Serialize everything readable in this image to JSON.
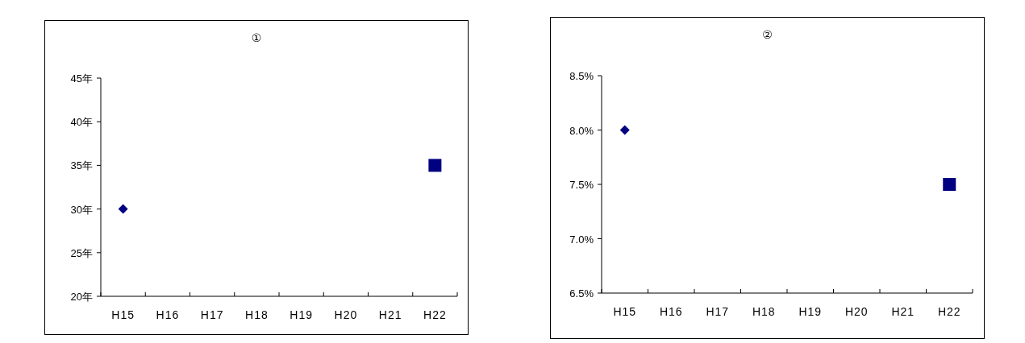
{
  "chart_data": [
    {
      "type": "scatter",
      "title": "①",
      "categories": [
        "H15",
        "H16",
        "H17",
        "H18",
        "H19",
        "H20",
        "H21",
        "H22"
      ],
      "ylim": [
        20,
        45
      ],
      "yticks": [
        {
          "value": 20,
          "label": "20年"
        },
        {
          "value": 25,
          "label": "25年"
        },
        {
          "value": 30,
          "label": "30年"
        },
        {
          "value": 35,
          "label": "35年"
        },
        {
          "value": 40,
          "label": "40年"
        },
        {
          "value": 45,
          "label": "45年"
        }
      ],
      "grid": false,
      "series": [
        {
          "color": "#000080",
          "marker": "diamond",
          "values": [
            30,
            null,
            null,
            null,
            null,
            null,
            null,
            null
          ]
        },
        {
          "color": "#000080",
          "marker": "square",
          "values": [
            null,
            null,
            null,
            null,
            null,
            null,
            null,
            35
          ]
        }
      ]
    },
    {
      "type": "scatter",
      "title": "②",
      "categories": [
        "H15",
        "H16",
        "H17",
        "H18",
        "H19",
        "H20",
        "H21",
        "H22"
      ],
      "ylim": [
        6.5,
        8.5
      ],
      "yticks": [
        {
          "value": 6.5,
          "label": "6.5%"
        },
        {
          "value": 7.0,
          "label": "7.0%"
        },
        {
          "value": 7.5,
          "label": "7.5%"
        },
        {
          "value": 8.0,
          "label": "8.0%"
        },
        {
          "value": 8.5,
          "label": "8.5%"
        }
      ],
      "grid": false,
      "series": [
        {
          "color": "#000080",
          "marker": "diamond",
          "values": [
            8.0,
            null,
            null,
            null,
            null,
            null,
            null,
            null
          ]
        },
        {
          "color": "#000080",
          "marker": "square",
          "values": [
            null,
            null,
            null,
            null,
            null,
            null,
            null,
            7.5
          ]
        }
      ]
    }
  ]
}
